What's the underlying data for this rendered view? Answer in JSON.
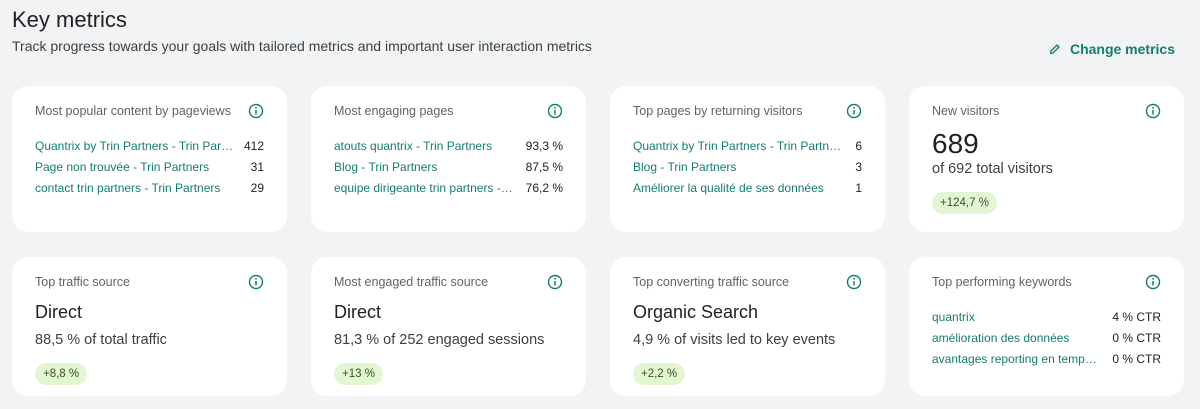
{
  "header": {
    "title": "Key metrics",
    "subtitle": "Track progress towards your goals with tailored metrics and important user interaction metrics",
    "action": "Change metrics"
  },
  "cards": [
    {
      "title": "Most popular content by pageviews",
      "rows": [
        {
          "label": "Quantrix by Trin Partners - Trin Partners",
          "value": "412"
        },
        {
          "label": "Page non trouvée - Trin Partners",
          "value": "31"
        },
        {
          "label": "contact trin partners - Trin Partners",
          "value": "29"
        }
      ]
    },
    {
      "title": "Most engaging pages",
      "rows": [
        {
          "label": "atouts quantrix - Trin Partners",
          "value": "93,3 %"
        },
        {
          "label": "Blog - Trin Partners",
          "value": "87,5 %"
        },
        {
          "label": "equipe dirigeante trin partners - Trin Partners",
          "value": "76,2 %"
        }
      ]
    },
    {
      "title": "Top pages by returning visitors",
      "rows": [
        {
          "label": "Quantrix by Trin Partners - Trin Partners",
          "value": "6"
        },
        {
          "label": "Blog - Trin Partners",
          "value": "3"
        },
        {
          "label": "Améliorer la qualité de ses données",
          "value": "1"
        }
      ]
    },
    {
      "title": "New visitors",
      "value": "689",
      "description": "of 692 total visitors",
      "change": "+124,7 %"
    },
    {
      "title": "Top traffic source",
      "value": "Direct",
      "description": "88,5 % of total traffic",
      "change": "+8,8 %"
    },
    {
      "title": "Most engaged traffic source",
      "value": "Direct",
      "description": "81,3 % of 252 engaged sessions",
      "change": "+13 %"
    },
    {
      "title": "Top converting traffic source",
      "value": "Organic Search",
      "description": "4,9 % of visits led to key events",
      "change": "+2,2 %"
    },
    {
      "title": "Top performing keywords",
      "rows": [
        {
          "label": "quantrix",
          "value": "4 % CTR"
        },
        {
          "label": "amélioration des données",
          "value": "0 % CTR"
        },
        {
          "label": "avantages reporting en temps réel",
          "value": "0 % CTR"
        }
      ]
    }
  ]
}
